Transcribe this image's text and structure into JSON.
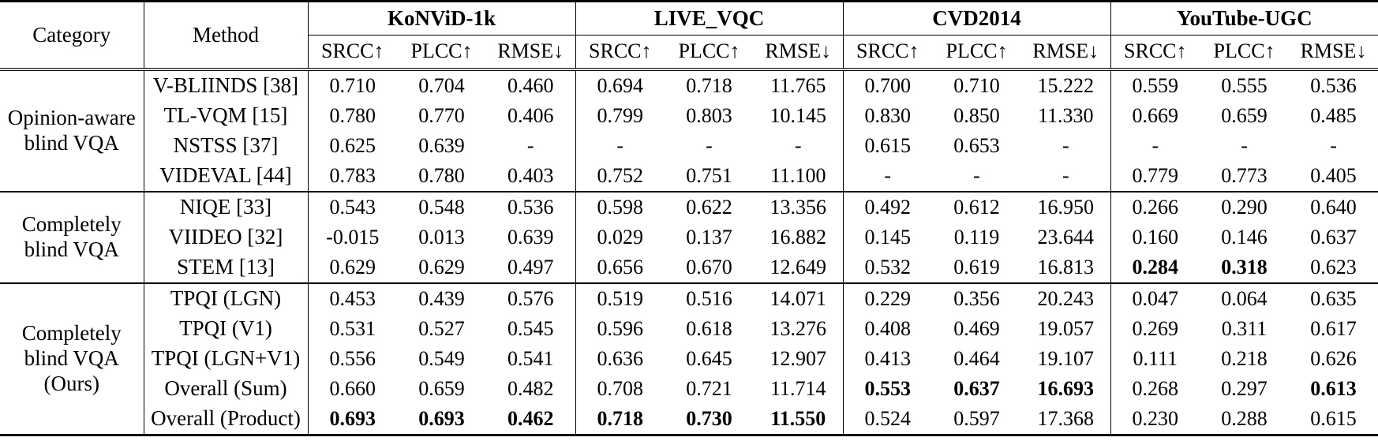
{
  "table": {
    "col1_header": "Category",
    "col2_header": "Method",
    "datasets": [
      {
        "name": "KoNViD-1k"
      },
      {
        "name": "LIVE_VQC"
      },
      {
        "name": "CVD2014"
      },
      {
        "name": "YouTube-UGC"
      }
    ],
    "metrics": [
      "SRCC↑",
      "PLCC↑",
      "RMSE↓"
    ],
    "missing_marker": "-",
    "groups": [
      {
        "category": "Opinion-aware blind VQA",
        "rows": [
          {
            "method": "V-BLIINDS [38]",
            "values": [
              "0.710",
              "0.704",
              "0.460",
              "0.694",
              "0.718",
              "11.765",
              "0.700",
              "0.710",
              "15.222",
              "0.559",
              "0.555",
              "0.536"
            ],
            "bold": []
          },
          {
            "method": "TL-VQM [15]",
            "values": [
              "0.780",
              "0.770",
              "0.406",
              "0.799",
              "0.803",
              "10.145",
              "0.830",
              "0.850",
              "11.330",
              "0.669",
              "0.659",
              "0.485"
            ],
            "bold": []
          },
          {
            "method": "NSTSS [37]",
            "values": [
              "0.625",
              "0.639",
              "-",
              "-",
              "-",
              "-",
              "0.615",
              "0.653",
              "-",
              "-",
              "-",
              "-"
            ],
            "bold": []
          },
          {
            "method": "VIDEVAL [44]",
            "values": [
              "0.783",
              "0.780",
              "0.403",
              "0.752",
              "0.751",
              "11.100",
              "-",
              "-",
              "-",
              "0.779",
              "0.773",
              "0.405"
            ],
            "bold": []
          }
        ]
      },
      {
        "category": "Completely blind VQA",
        "rows": [
          {
            "method": "NIQE [33]",
            "values": [
              "0.543",
              "0.548",
              "0.536",
              "0.598",
              "0.622",
              "13.356",
              "0.492",
              "0.612",
              "16.950",
              "0.266",
              "0.290",
              "0.640"
            ],
            "bold": []
          },
          {
            "method": "VIIDEO [32]",
            "values": [
              "-0.015",
              "0.013",
              "0.639",
              "0.029",
              "0.137",
              "16.882",
              "0.145",
              "0.119",
              "23.644",
              "0.160",
              "0.146",
              "0.637"
            ],
            "bold": []
          },
          {
            "method": "STEM [13]",
            "values": [
              "0.629",
              "0.629",
              "0.497",
              "0.656",
              "0.670",
              "12.649",
              "0.532",
              "0.619",
              "16.813",
              "0.284",
              "0.318",
              "0.623"
            ],
            "bold": [
              9,
              10
            ]
          }
        ]
      },
      {
        "category": "Completely blind VQA (Ours)",
        "rows": [
          {
            "method": "TPQI (LGN)",
            "values": [
              "0.453",
              "0.439",
              "0.576",
              "0.519",
              "0.516",
              "14.071",
              "0.229",
              "0.356",
              "20.243",
              "0.047",
              "0.064",
              "0.635"
            ],
            "bold": []
          },
          {
            "method": "TPQI (V1)",
            "values": [
              "0.531",
              "0.527",
              "0.545",
              "0.596",
              "0.618",
              "13.276",
              "0.408",
              "0.469",
              "19.057",
              "0.269",
              "0.311",
              "0.617"
            ],
            "bold": []
          },
          {
            "method": "TPQI (LGN+V1)",
            "values": [
              "0.556",
              "0.549",
              "0.541",
              "0.636",
              "0.645",
              "12.907",
              "0.413",
              "0.464",
              "19.107",
              "0.111",
              "0.218",
              "0.626"
            ],
            "bold": []
          },
          {
            "method": "Overall (Sum)",
            "values": [
              "0.660",
              "0.659",
              "0.482",
              "0.708",
              "0.721",
              "11.714",
              "0.553",
              "0.637",
              "16.693",
              "0.268",
              "0.297",
              "0.613"
            ],
            "bold": [
              6,
              7,
              8,
              11
            ]
          },
          {
            "method": "Overall (Product)",
            "values": [
              "0.693",
              "0.693",
              "0.462",
              "0.718",
              "0.730",
              "11.550",
              "0.524",
              "0.597",
              "17.368",
              "0.230",
              "0.288",
              "0.615"
            ],
            "bold": [
              0,
              1,
              2,
              3,
              4,
              5
            ]
          }
        ]
      }
    ]
  }
}
